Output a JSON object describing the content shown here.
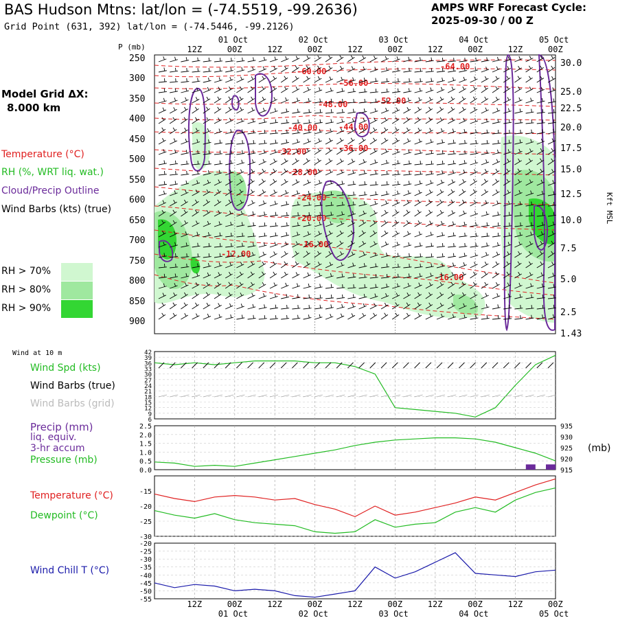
{
  "header": {
    "title": "BAS Hudson Mtns:  lat/lon = (-74.5519, -99.2636)",
    "subtitle": "Grid Point (631, 392) lat/lon = (-74.5446, -99.2126)",
    "cycle_line1": "AMPS WRF Forecast Cycle:",
    "cycle_line2": "2025-09-30 / 00  Z"
  },
  "left_panel": {
    "model_grid_line1": "Model Grid ΔX:",
    "model_grid_line2": "8.000 km",
    "temperature_label": "Temperature (°C)",
    "rh_label": "RH (%, WRT liq. wat.)",
    "cloud_label": "Cloud/Precip Outline",
    "wind_label": "Wind Barbs (kts) (true)",
    "rh_legend": [
      {
        "label": "RH > 70%",
        "color": "#d0f7d0"
      },
      {
        "label": "RH > 80%",
        "color": "#9fe89f"
      },
      {
        "label": "RH > 90%",
        "color": "#33d633"
      }
    ]
  },
  "colors": {
    "temperature": "#e02020",
    "rh_moist": "#33d633",
    "cloud": "#6a2a9a",
    "wind_speed": "#22bb22",
    "dewpoint": "#22bb22",
    "wind_chill": "#1a1aaa",
    "precip": "#6a2a9a"
  },
  "time_axis": {
    "ticks_top": [
      "12Z",
      "00Z",
      "12Z",
      "00Z",
      "12Z",
      "00Z",
      "12Z",
      "00Z",
      "12Z",
      "00Z"
    ],
    "dates": [
      "01 Oct",
      "02 Oct",
      "03 Oct",
      "04 Oct",
      "05 Oct"
    ]
  },
  "pressure_axis": {
    "label": "P (mb)",
    "levels": [
      "250",
      "300",
      "350",
      "400",
      "450",
      "500",
      "550",
      "600",
      "650",
      "700",
      "750",
      "800",
      "850",
      "900"
    ]
  },
  "height_axis": {
    "label": "Kft MSL",
    "ticks": [
      "30.0",
      "25.0",
      "22.5",
      "20.0",
      "17.5",
      "15.0",
      "12.5",
      "10.0",
      "7.5",
      "5.0",
      "2.5",
      "1.43"
    ]
  },
  "temp_contour_labels": [
    "-64.00",
    "-60.00",
    "-56.00",
    "-52.00",
    "-48.00",
    "-44.00",
    "-40.00",
    "-36.00",
    "-32.00",
    "-28.00",
    "-24.00",
    "-20.00",
    "-16.00",
    "-16.00",
    "-12.00"
  ],
  "wind_panel": {
    "heading": "Wind at 10 m",
    "speed_label": "Wind Spd (kts)",
    "barbs_true_label": "Wind Barbs (true)",
    "barbs_grid_label": "Wind Barbs (grid)",
    "yticks": [
      "42",
      "39",
      "36",
      "33",
      "30",
      "27",
      "24",
      "21",
      "18",
      "15",
      "12",
      "9",
      "6"
    ]
  },
  "precip_panel": {
    "precip_label": "Precip (mm)",
    "liq_label": "liq. equiv.",
    "accum_label": "3-hr accum",
    "pressure_label": "Pressure (mb)",
    "unit_right": "(mb)",
    "yticks_left": [
      "2.5",
      "2.0",
      "1.5",
      "1.0",
      "0.5",
      "0.0"
    ],
    "yticks_right": [
      "935",
      "930",
      "925",
      "920",
      "915"
    ]
  },
  "temp_panel": {
    "temperature_label": "Temperature (°C)",
    "dewpoint_label": "Dewpoint (°C)",
    "yticks": [
      "-15",
      "-20",
      "-25",
      "-30"
    ]
  },
  "chill_panel": {
    "label": "Wind Chill T (°C)",
    "yticks": [
      "-20",
      "-25",
      "-30",
      "-35",
      "-40",
      "-45",
      "-50",
      "-55"
    ]
  },
  "chart_data": [
    {
      "type": "line",
      "title": "Wind at 10 m",
      "ylabel": "Wind Spd (kts)",
      "ylim": [
        6,
        42
      ],
      "x_hours": [
        0,
        6,
        12,
        18,
        24,
        30,
        36,
        42,
        48,
        54,
        60,
        66,
        72,
        78,
        84,
        90,
        96,
        102,
        108,
        114,
        120
      ],
      "series": [
        {
          "name": "Wind Spd (kts)",
          "values": [
            36,
            35,
            36,
            35,
            36,
            37,
            37,
            37,
            36,
            36,
            34,
            30,
            12,
            11,
            10,
            9,
            7,
            12,
            24,
            35,
            40
          ]
        }
      ]
    },
    {
      "type": "line",
      "title": "",
      "ylim": [
        0,
        2.5
      ],
      "x_hours": [
        0,
        6,
        12,
        18,
        24,
        30,
        36,
        42,
        48,
        54,
        60,
        66,
        72,
        78,
        84,
        90,
        96,
        102,
        108,
        114,
        120
      ],
      "series": [
        {
          "name": "Pressure (mb)",
          "values": [
            918.5,
            918,
            916.5,
            917,
            916.5,
            918,
            919.5,
            921,
            922.5,
            924,
            926,
            927.5,
            928.5,
            929,
            929.5,
            929.5,
            929,
            927.5,
            925,
            922.5,
            919
          ]
        },
        {
          "name": "Precip (mm)",
          "values": [
            0,
            0,
            0,
            0,
            0,
            0,
            0,
            0,
            0,
            0,
            0,
            0,
            0,
            0,
            0,
            0,
            0,
            0,
            0,
            0.3,
            0.3
          ]
        }
      ]
    },
    {
      "type": "line",
      "title": "",
      "ylim": [
        -30,
        -10
      ],
      "x_hours": [
        0,
        6,
        12,
        18,
        24,
        30,
        36,
        42,
        48,
        54,
        60,
        66,
        72,
        78,
        84,
        90,
        96,
        102,
        108,
        114,
        120
      ],
      "series": [
        {
          "name": "Temperature (°C)",
          "values": [
            -16,
            -17.5,
            -18.5,
            -17,
            -16.5,
            -17,
            -18,
            -17.5,
            -19.5,
            -21,
            -23.5,
            -20,
            -23,
            -22,
            -20.5,
            -19,
            -17,
            -18,
            -15.5,
            -13,
            -11
          ]
        },
        {
          "name": "Dewpoint (°C)",
          "values": [
            -21.5,
            -23,
            -24,
            -22.5,
            -24.5,
            -25.5,
            -26,
            -26.5,
            -28.5,
            -29,
            -28.5,
            -24.5,
            -27,
            -26,
            -25.5,
            -22,
            -20.5,
            -22,
            -18,
            -15.5,
            -14
          ]
        }
      ]
    },
    {
      "type": "line",
      "title": "",
      "ylim": [
        -55,
        -20
      ],
      "x_hours": [
        0,
        6,
        12,
        18,
        24,
        30,
        36,
        42,
        48,
        54,
        60,
        66,
        72,
        78,
        84,
        90,
        96,
        102,
        108,
        114,
        120
      ],
      "series": [
        {
          "name": "Wind Chill T (°C)",
          "values": [
            -45,
            -48,
            -46,
            -47,
            -50,
            -49,
            -50,
            -53,
            -54,
            -52,
            -50,
            -35,
            -42,
            -38,
            -32,
            -26,
            -39,
            -40,
            -41,
            -38,
            -37
          ]
        }
      ]
    }
  ]
}
